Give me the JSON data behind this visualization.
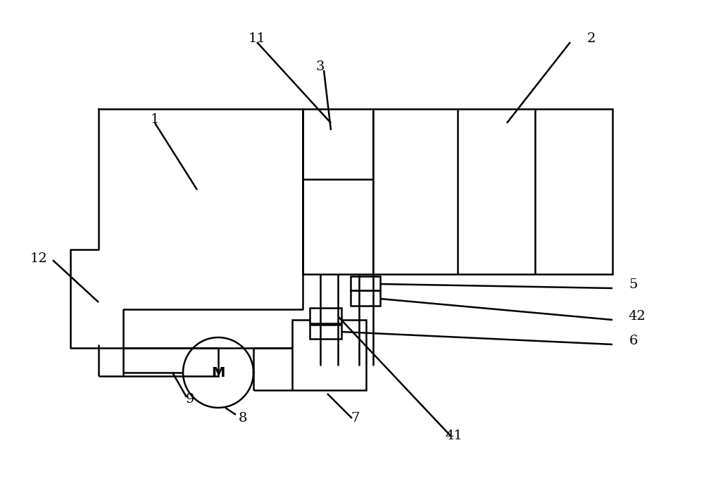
{
  "bg_color": "#ffffff",
  "line_color": "#000000",
  "lw": 1.8,
  "fig_width": 10.0,
  "fig_height": 6.8
}
